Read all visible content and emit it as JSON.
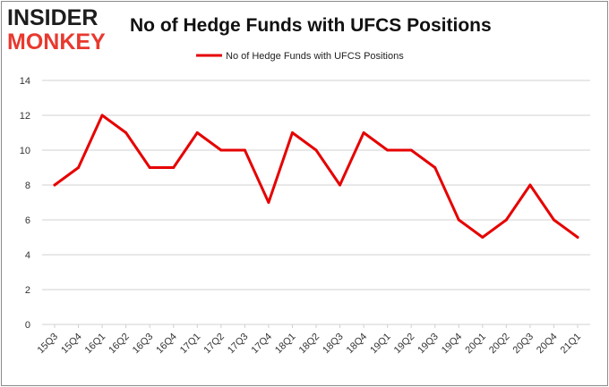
{
  "logo": {
    "line1": "INSIDER",
    "line2": "MONKEY"
  },
  "chart_data": {
    "type": "line",
    "title": "No of Hedge Funds with UFCS Positions",
    "xlabel": "",
    "ylabel": "",
    "categories": [
      "15Q3",
      "15Q4",
      "16Q1",
      "16Q2",
      "16Q3",
      "16Q4",
      "17Q1",
      "17Q2",
      "17Q3",
      "17Q4",
      "18Q1",
      "18Q2",
      "18Q3",
      "18Q4",
      "19Q1",
      "19Q2",
      "19Q3",
      "19Q4",
      "20Q1",
      "20Q2",
      "20Q3",
      "20Q4",
      "21Q1"
    ],
    "series": [
      {
        "name": "No of Hedge Funds with UFCS Positions",
        "color": "#e60000",
        "values": [
          8,
          9,
          12,
          11,
          9,
          9,
          11,
          10,
          10,
          7,
          11,
          10,
          8,
          11,
          10,
          10,
          9,
          6,
          5,
          6,
          8,
          6,
          5
        ]
      }
    ],
    "ylim": [
      0,
      14
    ],
    "yticks": [
      0,
      2,
      4,
      6,
      8,
      10,
      12,
      14
    ],
    "grid": true,
    "legend": "top-center"
  }
}
